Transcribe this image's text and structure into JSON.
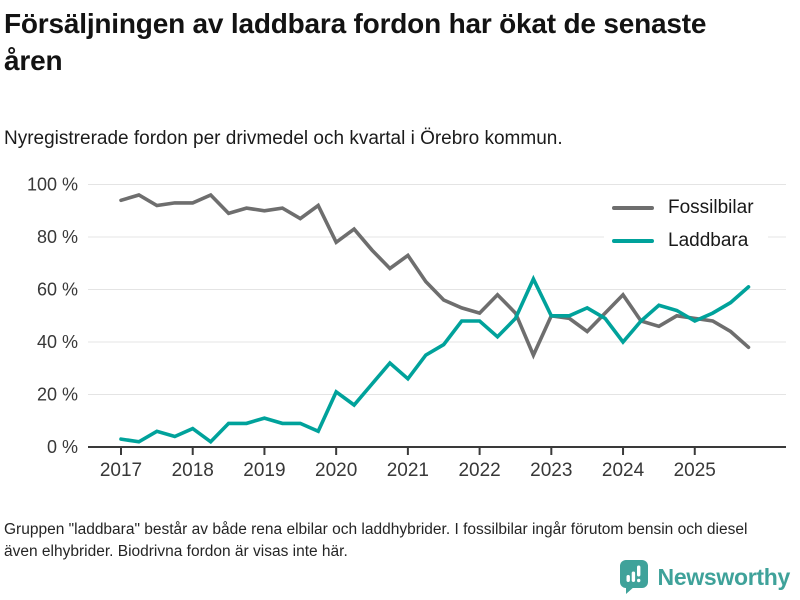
{
  "header": {
    "title": "Försäljningen av laddbara fordon har ökat de senaste åren",
    "subtitle": "Nyregistrerade fordon per drivmedel och kvartal i Örebro kommun."
  },
  "chart_data": {
    "type": "line",
    "x_unit": "quarter",
    "x_start": "2017 Q1",
    "x_end": "2025 Q4",
    "x_tick_labels": [
      "2017",
      "2018",
      "2019",
      "2020",
      "2021",
      "2022",
      "2023",
      "2024",
      "2025"
    ],
    "y_tick_values": [
      0,
      20,
      40,
      60,
      80,
      100
    ],
    "y_tick_labels": [
      "0 %",
      "20 %",
      "40 %",
      "60 %",
      "80 %",
      "100 %"
    ],
    "ylim": [
      0,
      100
    ],
    "grid": true,
    "legend_position": "top-right-inside",
    "colors": {
      "grid": "#e4e4e4",
      "axis": "#3a3a3a",
      "tick_text": "#383838"
    },
    "series": [
      {
        "name": "Fossilbilar",
        "color": "#6e6e6e",
        "values": [
          94,
          96,
          92,
          93,
          93,
          96,
          89,
          91,
          90,
          91,
          87,
          92,
          78,
          83,
          75,
          68,
          73,
          63,
          56,
          53,
          51,
          58,
          51,
          35,
          50,
          49,
          44,
          51,
          58,
          48,
          46,
          50,
          49,
          48,
          44,
          38
        ]
      },
      {
        "name": "Laddbara",
        "color": "#00a29b",
        "values": [
          3,
          2,
          6,
          4,
          7,
          2,
          9,
          9,
          11,
          9,
          9,
          6,
          21,
          16,
          24,
          32,
          26,
          35,
          39,
          48,
          48,
          42,
          49,
          64,
          50,
          50,
          53,
          49,
          40,
          48,
          54,
          52,
          48,
          51,
          55,
          61
        ]
      }
    ]
  },
  "footer": {
    "note": "Gruppen \"laddbara\" består av både rena elbilar och laddhybrider. I fossilbilar ingår förutom bensin och diesel även elhybrider. Biodrivna fordon är visas inte här.",
    "brand": "Newsworthy",
    "brand_color": "#3fa29a"
  }
}
